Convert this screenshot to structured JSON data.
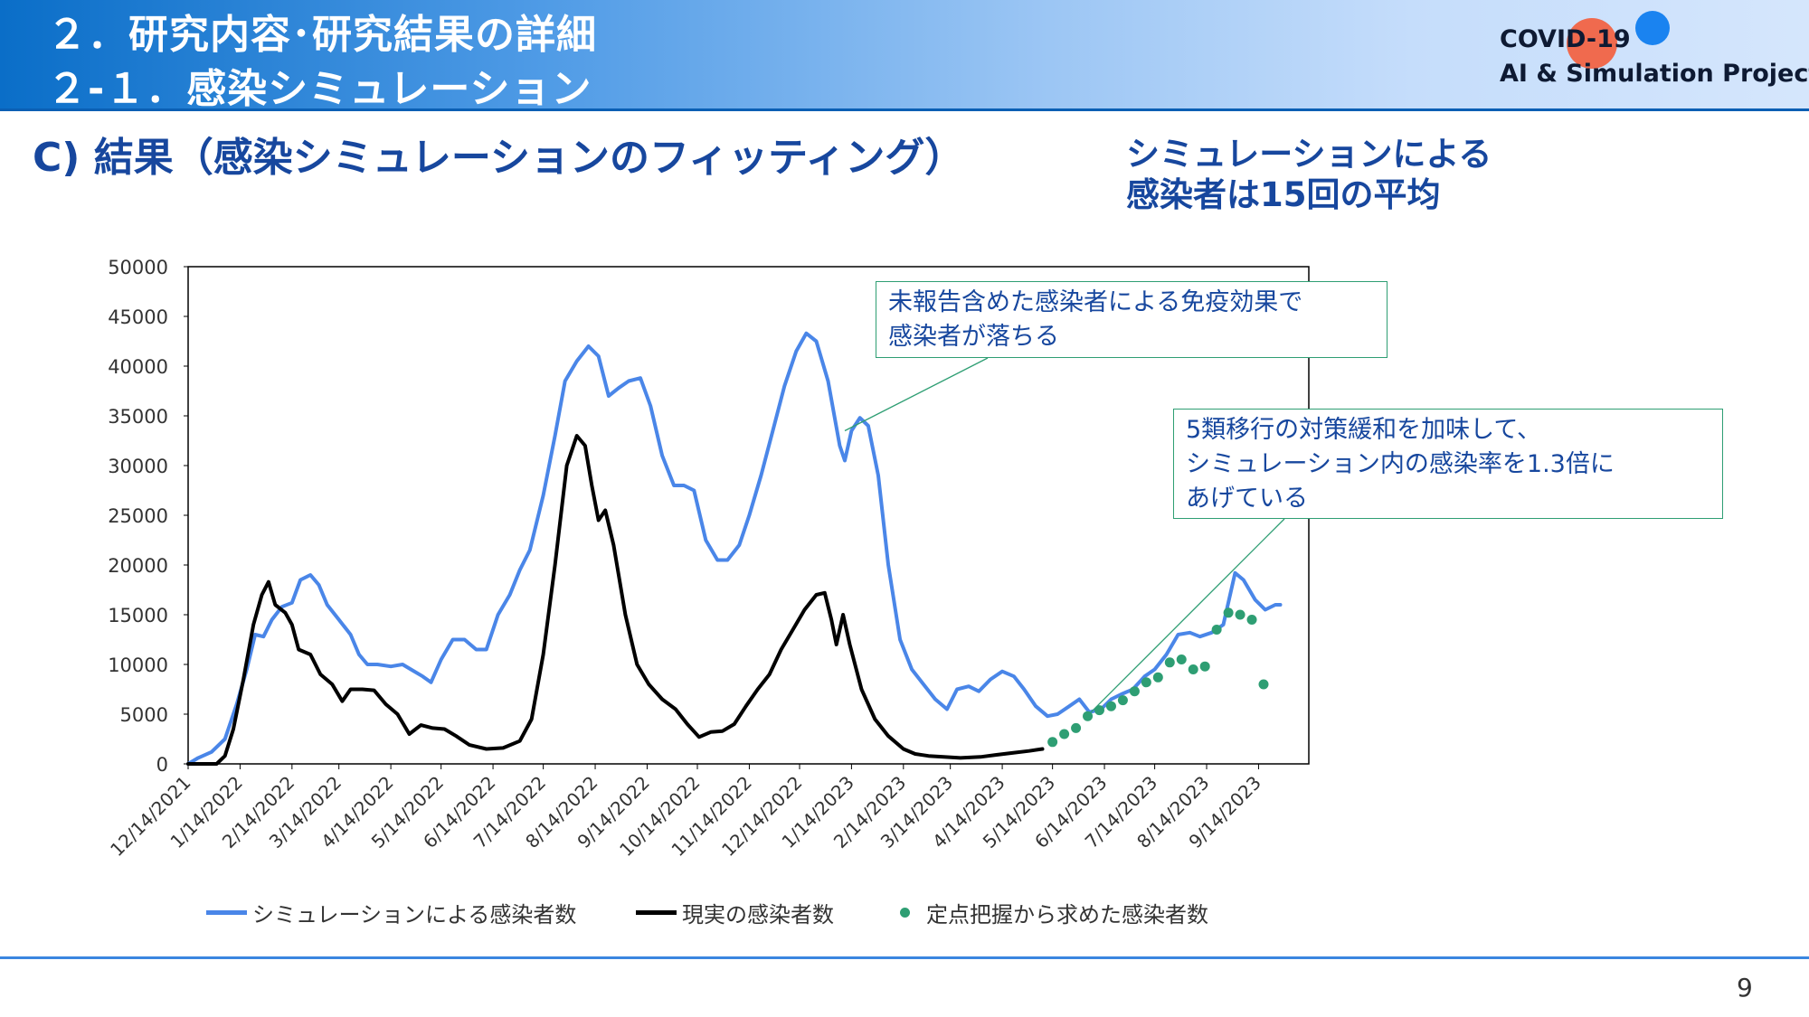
{
  "header": {
    "line1": "２．研究内容･研究結果の詳細",
    "line2": "２-１．感染シミュレーション"
  },
  "logo": {
    "line1": "COVID-19",
    "line2": "AI & Simulation Project"
  },
  "subtitle": "C) 結果（感染シミュレーションのフィッティング）",
  "note": {
    "line1": "シミュレーションによる",
    "line2": "感染者は15回の平均"
  },
  "callouts": [
    {
      "lines": [
        "未報告含めた感染者による免疫効果で",
        "感染者が落ちる"
      ]
    },
    {
      "lines": [
        "5類移行の対策緩和を加味して、",
        "シミュレーション内の感染率を1.3倍に",
        "あげている"
      ]
    }
  ],
  "page_number": "9",
  "colors": {
    "simulation": "#4a86e8",
    "actual": "#000000",
    "sentinel": "#2e9e73",
    "accent": "#17479e"
  },
  "chart_data": {
    "type": "line",
    "x_axis_type": "date",
    "xlim": [
      "2021-12-14",
      "2023-10-14"
    ],
    "ylim": [
      0,
      50000
    ],
    "y_ticks": [
      0,
      5000,
      10000,
      15000,
      20000,
      25000,
      30000,
      35000,
      40000,
      45000,
      50000
    ],
    "x_tick_labels": [
      "12/14/2021",
      "1/14/2022",
      "2/14/2022",
      "3/14/2022",
      "4/14/2022",
      "5/14/2022",
      "6/14/2022",
      "7/14/2022",
      "8/14/2022",
      "9/14/2022",
      "10/14/2022",
      "11/14/2022",
      "12/14/2022",
      "1/14/2023",
      "2/14/2023",
      "3/14/2023",
      "4/14/2023",
      "5/14/2023",
      "6/14/2023",
      "7/14/2023",
      "8/14/2023",
      "9/14/2023"
    ],
    "legend_position": "bottom",
    "grid": false,
    "series": [
      {
        "name": "シミュレーションによる感染者数",
        "style": "line",
        "points": [
          [
            "2021-12-14",
            0
          ],
          [
            "2021-12-20",
            600
          ],
          [
            "2021-12-28",
            1200
          ],
          [
            "2022-01-05",
            2500
          ],
          [
            "2022-01-12",
            6000
          ],
          [
            "2022-01-18",
            9500
          ],
          [
            "2022-01-23",
            13000
          ],
          [
            "2022-01-28",
            12800
          ],
          [
            "2022-02-02",
            14500
          ],
          [
            "2022-02-08",
            15800
          ],
          [
            "2022-02-14",
            16200
          ],
          [
            "2022-02-19",
            18500
          ],
          [
            "2022-02-25",
            19000
          ],
          [
            "2022-03-02",
            18000
          ],
          [
            "2022-03-07",
            16000
          ],
          [
            "2022-03-14",
            14500
          ],
          [
            "2022-03-21",
            13000
          ],
          [
            "2022-03-26",
            11000
          ],
          [
            "2022-03-31",
            10000
          ],
          [
            "2022-04-06",
            10000
          ],
          [
            "2022-04-14",
            9800
          ],
          [
            "2022-04-21",
            10000
          ],
          [
            "2022-04-26",
            9500
          ],
          [
            "2022-05-03",
            8800
          ],
          [
            "2022-05-08",
            8200
          ],
          [
            "2022-05-14",
            10500
          ],
          [
            "2022-05-21",
            12500
          ],
          [
            "2022-05-28",
            12500
          ],
          [
            "2022-06-04",
            11500
          ],
          [
            "2022-06-10",
            11500
          ],
          [
            "2022-06-17",
            15000
          ],
          [
            "2022-06-24",
            17000
          ],
          [
            "2022-06-30",
            19500
          ],
          [
            "2022-07-06",
            21500
          ],
          [
            "2022-07-14",
            27000
          ],
          [
            "2022-07-21",
            33000
          ],
          [
            "2022-07-27",
            38500
          ],
          [
            "2022-08-03",
            40500
          ],
          [
            "2022-08-10",
            42000
          ],
          [
            "2022-08-16",
            41000
          ],
          [
            "2022-08-22",
            37000
          ],
          [
            "2022-08-28",
            37800
          ],
          [
            "2022-09-03",
            38500
          ],
          [
            "2022-09-10",
            38800
          ],
          [
            "2022-09-16",
            36000
          ],
          [
            "2022-09-23",
            31000
          ],
          [
            "2022-09-30",
            28000
          ],
          [
            "2022-10-06",
            28000
          ],
          [
            "2022-10-12",
            27500
          ],
          [
            "2022-10-19",
            22500
          ],
          [
            "2022-10-26",
            20500
          ],
          [
            "2022-11-01",
            20500
          ],
          [
            "2022-11-08",
            22000
          ],
          [
            "2022-11-14",
            25000
          ],
          [
            "2022-11-21",
            29000
          ],
          [
            "2022-11-28",
            33500
          ],
          [
            "2022-12-05",
            38000
          ],
          [
            "2022-12-12",
            41500
          ],
          [
            "2022-12-18",
            43300
          ],
          [
            "2022-12-24",
            42500
          ],
          [
            "2022-12-31",
            38500
          ],
          [
            "2023-01-07",
            32000
          ],
          [
            "2023-01-10",
            30500
          ],
          [
            "2023-01-14",
            33500
          ],
          [
            "2023-01-19",
            34800
          ],
          [
            "2023-01-24",
            34000
          ],
          [
            "2023-01-30",
            29000
          ],
          [
            "2023-02-05",
            20000
          ],
          [
            "2023-02-12",
            12500
          ],
          [
            "2023-02-19",
            9500
          ],
          [
            "2023-02-26",
            8000
          ],
          [
            "2023-03-05",
            6500
          ],
          [
            "2023-03-12",
            5500
          ],
          [
            "2023-03-18",
            7500
          ],
          [
            "2023-03-25",
            7800
          ],
          [
            "2023-03-31",
            7300
          ],
          [
            "2023-04-07",
            8500
          ],
          [
            "2023-04-14",
            9300
          ],
          [
            "2023-04-21",
            8800
          ],
          [
            "2023-04-27",
            7500
          ],
          [
            "2023-05-04",
            5800
          ],
          [
            "2023-05-11",
            4800
          ],
          [
            "2023-05-17",
            5000
          ],
          [
            "2023-05-24",
            5800
          ],
          [
            "2023-05-30",
            6500
          ],
          [
            "2023-06-05",
            5200
          ],
          [
            "2023-06-12",
            5500
          ],
          [
            "2023-06-18",
            6500
          ],
          [
            "2023-06-24",
            7000
          ],
          [
            "2023-07-01",
            7500
          ],
          [
            "2023-07-08",
            8800
          ],
          [
            "2023-07-14",
            9500
          ],
          [
            "2023-07-21",
            11000
          ],
          [
            "2023-07-28",
            13000
          ],
          [
            "2023-08-04",
            13200
          ],
          [
            "2023-08-10",
            12800
          ],
          [
            "2023-08-17",
            13200
          ],
          [
            "2023-08-24",
            14000
          ],
          [
            "2023-08-31",
            19200
          ],
          [
            "2023-09-05",
            18500
          ],
          [
            "2023-09-12",
            16500
          ],
          [
            "2023-09-18",
            15500
          ],
          [
            "2023-09-24",
            16000
          ],
          [
            "2023-09-27",
            16000
          ]
        ]
      },
      {
        "name": "現実の感染者数",
        "style": "line",
        "points": [
          [
            "2021-12-14",
            0
          ],
          [
            "2021-12-31",
            0
          ],
          [
            "2022-01-05",
            800
          ],
          [
            "2022-01-10",
            3500
          ],
          [
            "2022-01-16",
            8500
          ],
          [
            "2022-01-22",
            14000
          ],
          [
            "2022-01-27",
            17000
          ],
          [
            "2022-01-31",
            18300
          ],
          [
            "2022-02-04",
            16000
          ],
          [
            "2022-02-10",
            15200
          ],
          [
            "2022-02-14",
            14000
          ],
          [
            "2022-02-18",
            11500
          ],
          [
            "2022-02-25",
            11000
          ],
          [
            "2022-03-03",
            9000
          ],
          [
            "2022-03-10",
            8000
          ],
          [
            "2022-03-16",
            6300
          ],
          [
            "2022-03-21",
            7500
          ],
          [
            "2022-03-28",
            7500
          ],
          [
            "2022-04-04",
            7400
          ],
          [
            "2022-04-11",
            6000
          ],
          [
            "2022-04-18",
            5000
          ],
          [
            "2022-04-25",
            3000
          ],
          [
            "2022-05-02",
            3900
          ],
          [
            "2022-05-09",
            3600
          ],
          [
            "2022-05-16",
            3500
          ],
          [
            "2022-05-23",
            2800
          ],
          [
            "2022-05-31",
            1900
          ],
          [
            "2022-06-10",
            1500
          ],
          [
            "2022-06-20",
            1600
          ],
          [
            "2022-06-30",
            2300
          ],
          [
            "2022-07-07",
            4500
          ],
          [
            "2022-07-14",
            11000
          ],
          [
            "2022-07-21",
            20000
          ],
          [
            "2022-07-28",
            30000
          ],
          [
            "2022-08-03",
            33000
          ],
          [
            "2022-08-08",
            32000
          ],
          [
            "2022-08-12",
            28000
          ],
          [
            "2022-08-16",
            24500
          ],
          [
            "2022-08-20",
            25500
          ],
          [
            "2022-08-25",
            22000
          ],
          [
            "2022-09-01",
            15000
          ],
          [
            "2022-09-08",
            10000
          ],
          [
            "2022-09-15",
            8000
          ],
          [
            "2022-09-23",
            6500
          ],
          [
            "2022-10-01",
            5500
          ],
          [
            "2022-10-08",
            4000
          ],
          [
            "2022-10-15",
            2700
          ],
          [
            "2022-10-22",
            3200
          ],
          [
            "2022-10-29",
            3300
          ],
          [
            "2022-11-05",
            4000
          ],
          [
            "2022-11-12",
            5800
          ],
          [
            "2022-11-19",
            7500
          ],
          [
            "2022-11-26",
            9000
          ],
          [
            "2022-12-03",
            11500
          ],
          [
            "2022-12-10",
            13500
          ],
          [
            "2022-12-17",
            15500
          ],
          [
            "2022-12-24",
            17000
          ],
          [
            "2022-12-29",
            17200
          ],
          [
            "2023-01-02",
            14500
          ],
          [
            "2023-01-05",
            12000
          ],
          [
            "2023-01-09",
            15000
          ],
          [
            "2023-01-13",
            12000
          ],
          [
            "2023-01-20",
            7500
          ],
          [
            "2023-01-28",
            4500
          ],
          [
            "2023-02-05",
            2800
          ],
          [
            "2023-02-14",
            1500
          ],
          [
            "2023-02-21",
            1000
          ],
          [
            "2023-03-01",
            800
          ],
          [
            "2023-03-10",
            700
          ],
          [
            "2023-03-20",
            600
          ],
          [
            "2023-04-01",
            700
          ],
          [
            "2023-04-10",
            900
          ],
          [
            "2023-04-20",
            1100
          ],
          [
            "2023-04-30",
            1300
          ],
          [
            "2023-05-08",
            1500
          ]
        ]
      },
      {
        "name": "定点把握から求めた感染者数",
        "style": "scatter",
        "points": [
          [
            "2023-05-14",
            2200
          ],
          [
            "2023-05-21",
            3000
          ],
          [
            "2023-05-28",
            3600
          ],
          [
            "2023-06-04",
            4800
          ],
          [
            "2023-06-11",
            5400
          ],
          [
            "2023-06-18",
            5800
          ],
          [
            "2023-06-25",
            6400
          ],
          [
            "2023-07-02",
            7300
          ],
          [
            "2023-07-09",
            8200
          ],
          [
            "2023-07-16",
            8700
          ],
          [
            "2023-07-23",
            10200
          ],
          [
            "2023-07-30",
            10500
          ],
          [
            "2023-08-06",
            9500
          ],
          [
            "2023-08-13",
            9800
          ],
          [
            "2023-08-20",
            13500
          ],
          [
            "2023-08-27",
            15200
          ],
          [
            "2023-09-03",
            15000
          ],
          [
            "2023-09-10",
            14500
          ],
          [
            "2023-09-17",
            8000
          ]
        ]
      }
    ]
  }
}
